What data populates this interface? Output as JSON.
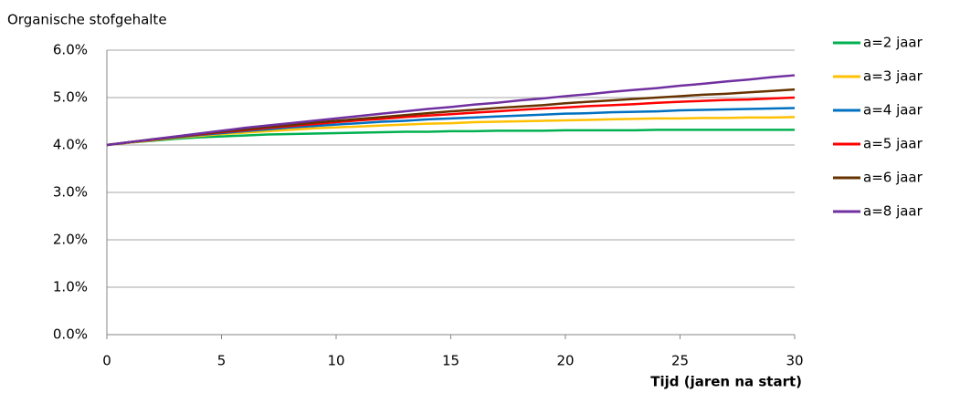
{
  "chart_data": {
    "type": "line",
    "y_label": "Organische stofgehalte",
    "x_label": "Tijd (jaren na start)",
    "x": [
      0,
      1,
      2,
      3,
      4,
      5,
      6,
      7,
      8,
      9,
      10,
      11,
      12,
      13,
      14,
      15,
      16,
      17,
      18,
      19,
      20,
      21,
      22,
      23,
      24,
      25,
      26,
      27,
      28,
      29,
      30
    ],
    "series": [
      {
        "name": "a=2 jaar",
        "color": "#00b050",
        "values": [
          4.0,
          4.05,
          4.09,
          4.13,
          4.16,
          4.18,
          4.2,
          4.22,
          4.23,
          4.24,
          4.25,
          4.26,
          4.27,
          4.28,
          4.28,
          4.29,
          4.29,
          4.3,
          4.3,
          4.3,
          4.31,
          4.31,
          4.31,
          4.31,
          4.32,
          4.32,
          4.32,
          4.32,
          4.32,
          4.32,
          4.32
        ]
      },
      {
        "name": "a=3 jaar",
        "color": "#ffc000",
        "values": [
          4.0,
          4.05,
          4.1,
          4.15,
          4.19,
          4.23,
          4.26,
          4.29,
          4.32,
          4.35,
          4.37,
          4.39,
          4.41,
          4.43,
          4.45,
          4.46,
          4.48,
          4.49,
          4.5,
          4.51,
          4.52,
          4.53,
          4.54,
          4.55,
          4.56,
          4.56,
          4.57,
          4.57,
          4.58,
          4.58,
          4.59
        ]
      },
      {
        "name": "a=4 jaar",
        "color": "#0070c0",
        "values": [
          4.0,
          4.06,
          4.11,
          4.16,
          4.21,
          4.25,
          4.29,
          4.33,
          4.37,
          4.4,
          4.43,
          4.46,
          4.49,
          4.51,
          4.54,
          4.56,
          4.58,
          4.6,
          4.62,
          4.64,
          4.66,
          4.67,
          4.69,
          4.7,
          4.71,
          4.73,
          4.74,
          4.75,
          4.76,
          4.77,
          4.78
        ]
      },
      {
        "name": "a=5 jaar",
        "color": "#ff0000",
        "values": [
          4.0,
          4.06,
          4.11,
          4.17,
          4.22,
          4.27,
          4.31,
          4.36,
          4.4,
          4.44,
          4.48,
          4.52,
          4.55,
          4.59,
          4.62,
          4.65,
          4.68,
          4.71,
          4.74,
          4.77,
          4.79,
          4.82,
          4.84,
          4.86,
          4.89,
          4.91,
          4.93,
          4.95,
          4.96,
          4.98,
          5.0
        ]
      },
      {
        "name": "a=6 jaar",
        "color": "#663300",
        "values": [
          4.0,
          4.06,
          4.12,
          4.17,
          4.23,
          4.28,
          4.33,
          4.38,
          4.42,
          4.47,
          4.51,
          4.55,
          4.59,
          4.63,
          4.67,
          4.71,
          4.74,
          4.78,
          4.81,
          4.84,
          4.88,
          4.91,
          4.94,
          4.97,
          5.0,
          5.03,
          5.06,
          5.08,
          5.11,
          5.14,
          5.17
        ]
      },
      {
        "name": "a=8 jaar",
        "color": "#7030a0",
        "values": [
          4.0,
          4.06,
          4.12,
          4.18,
          4.24,
          4.3,
          4.36,
          4.41,
          4.46,
          4.51,
          4.56,
          4.61,
          4.66,
          4.71,
          4.76,
          4.8,
          4.85,
          4.89,
          4.94,
          4.98,
          5.03,
          5.07,
          5.12,
          5.16,
          5.2,
          5.25,
          5.29,
          5.34,
          5.38,
          5.43,
          5.47
        ]
      }
    ],
    "xlim": [
      0,
      30
    ],
    "xticks": [
      0,
      5,
      10,
      15,
      20,
      25,
      30
    ],
    "ylim": [
      0,
      6
    ],
    "yticks": [
      {
        "value": 0,
        "label": "0.0%"
      },
      {
        "value": 1,
        "label": "1.0%"
      },
      {
        "value": 2,
        "label": "2.0%"
      },
      {
        "value": 3,
        "label": "3.0%"
      },
      {
        "value": 4,
        "label": "4.0%"
      },
      {
        "value": 5,
        "label": "5.0%"
      },
      {
        "value": 6,
        "label": "6.0%"
      }
    ],
    "grid": true,
    "legend": "right"
  }
}
